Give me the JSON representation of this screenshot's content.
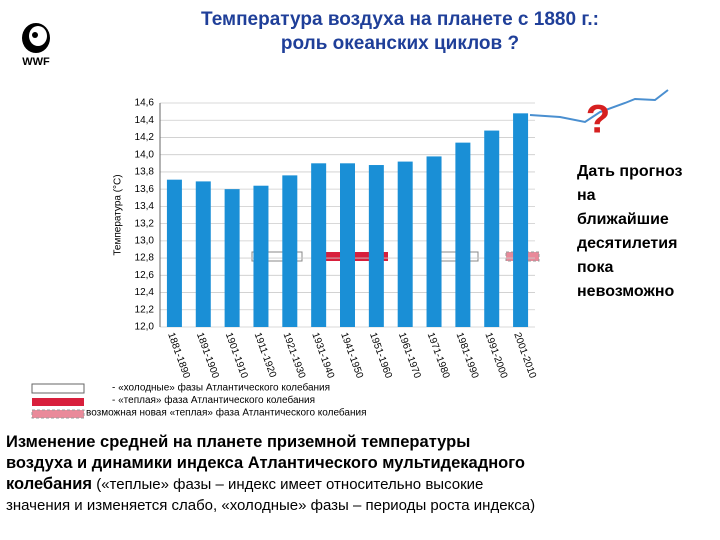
{
  "logo": "WWF",
  "title_lines": [
    "Температура воздуха на планете с 1880 г.:",
    "роль океанских циклов ?"
  ],
  "chart_data": {
    "type": "bar",
    "y_label": "Температура (°C)",
    "categories": [
      "1881-1890",
      "1891-1900",
      "1901-1910",
      "1911-1920",
      "1921-1930",
      "1931-1940",
      "1941-1950",
      "1951-1960",
      "1961-1970",
      "1971-1980",
      "1981-1990",
      "1991-2000",
      "2001-2010"
    ],
    "values": [
      13.71,
      13.69,
      13.6,
      13.64,
      13.76,
      13.9,
      13.9,
      13.88,
      13.92,
      13.98,
      14.14,
      14.28,
      14.48
    ],
    "color": "#1a8fd6",
    "ylim": [
      12.0,
      14.6
    ],
    "yticks": [
      {
        "value": 12.0,
        "label": "12,0"
      },
      {
        "value": 12.2,
        "label": "12,2"
      },
      {
        "value": 12.4,
        "label": "12,4"
      },
      {
        "value": 12.6,
        "label": "12,6"
      },
      {
        "value": 12.8,
        "label": "12,8"
      },
      {
        "value": 13.0,
        "label": "13,0"
      },
      {
        "value": 13.2,
        "label": "13,2"
      },
      {
        "value": 13.4,
        "label": "13,4"
      },
      {
        "value": 13.6,
        "label": "13,6"
      },
      {
        "value": 13.8,
        "label": "13,8"
      },
      {
        "value": 14.0,
        "label": "14,0"
      },
      {
        "value": 14.2,
        "label": "14,2"
      },
      {
        "value": 14.4,
        "label": "14,4"
      },
      {
        "value": 14.6,
        "label": "14,6"
      }
    ],
    "grid": true,
    "legend": [
      "- «холодные» фазы Атлантического колебания",
      "- «теплая» фаза Атлантического колебания",
      "возможная новая «теплая» фаза Атлантического колебания"
    ]
  },
  "question_mark": "?",
  "forecast_note": [
    "Дать прогноз",
    "на",
    "ближайшие",
    "десятилетия",
    "пока",
    "невозможно"
  ],
  "caption": {
    "bold_lines": [
      "Изменение средней на планете приземной температуры",
      "воздуха и динамики индекса Атлантического мультидекадного",
      "колебания"
    ],
    "normal_first": " («теплые» фазы – индекс имеет относительно высокие",
    "normal_second": "значения и изменяется слабо, «холодные» фазы – периоды роста индекса)"
  }
}
